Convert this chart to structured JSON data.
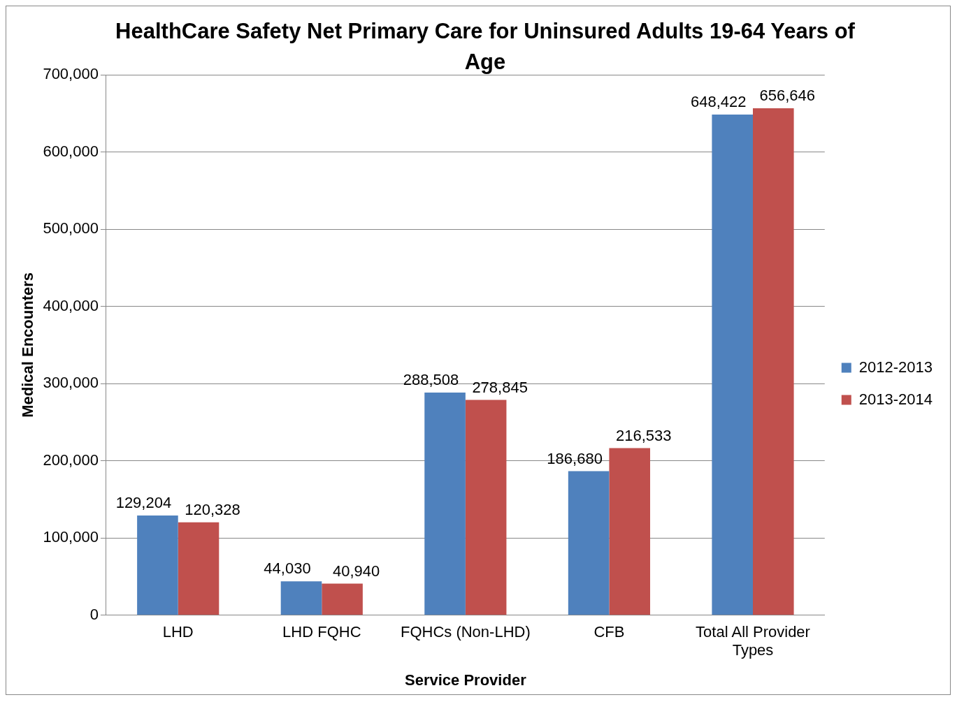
{
  "chart_data": {
    "type": "bar",
    "title": "HealthCare Safety Net Primary Care for Uninsured Adults 19-64 Years of Age",
    "xlabel": "Service Provider",
    "ylabel": "Medical Encounters",
    "categories": [
      "LHD",
      "LHD FQHC",
      "FQHCs (Non-LHD)",
      "CFB",
      "Total All Provider Types"
    ],
    "series": [
      {
        "name": "2012-2013",
        "color": "#4f81bd",
        "values": [
          129204,
          44030,
          288508,
          186680,
          648422
        ],
        "value_labels": [
          "129,204",
          "44,030",
          "288,508",
          "186,680",
          "648,422"
        ]
      },
      {
        "name": "2013-2014",
        "color": "#c0504d",
        "values": [
          120328,
          40940,
          278845,
          216533,
          656646
        ],
        "value_labels": [
          "120,328",
          "40,940",
          "278,845",
          "216,533",
          "656,646"
        ]
      }
    ],
    "ylim": [
      0,
      700000
    ],
    "yticks": [
      0,
      {
        "value": 100000,
        "label": "100,000"
      },
      {
        "value": 200000,
        "label": "200,000"
      },
      {
        "value": 300000,
        "label": "300,000"
      },
      {
        "value": 400000,
        "label": "400,000"
      },
      {
        "value": 500000,
        "label": "500,000"
      },
      {
        "value": 600000,
        "label": "600,000"
      },
      {
        "value": 700000,
        "label": "700,000"
      }
    ],
    "grid": "y",
    "legend": "right"
  }
}
